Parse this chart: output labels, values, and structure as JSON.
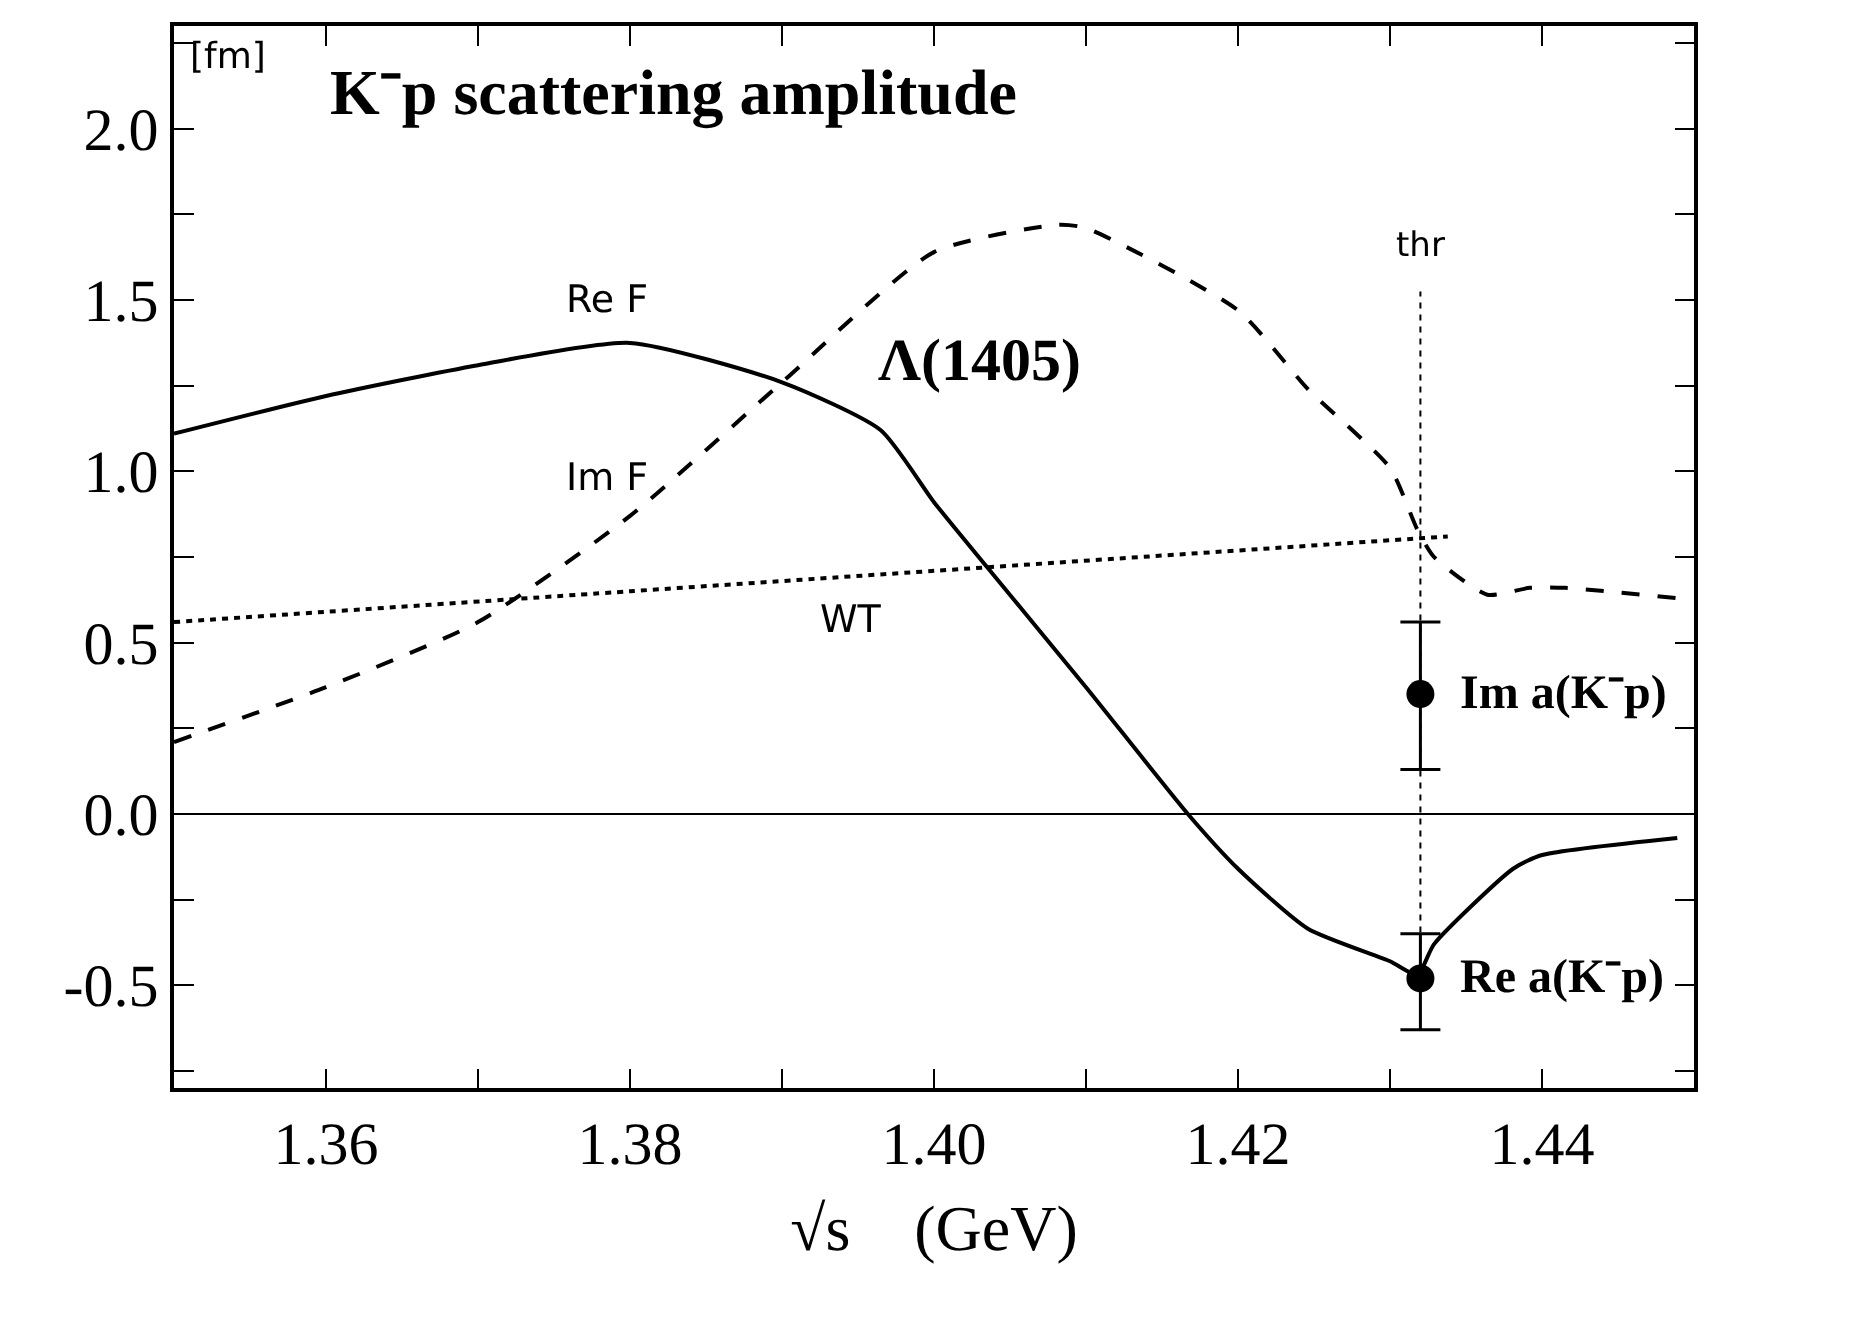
{
  "chart_data": {
    "type": "line",
    "title": "K⁻p scattering amplitude",
    "xlabel": "√s    (GeV)",
    "ylabel": "[fm]",
    "annotations": [
      "Λ(1405)",
      {
        "text": "Im a(K⁻p)",
        "x": 1.432,
        "y": 0.35
      },
      {
        "text": "Re a(K⁻p)",
        "x": 1.432,
        "y": -0.48
      }
    ],
    "xlim": [
      1.35,
      1.45
    ],
    "ylim": [
      -0.8,
      2.3
    ],
    "xticks": [
      {
        "value": 1.36,
        "label": "1.36"
      },
      {
        "value": 1.37,
        "label": null
      },
      {
        "value": 1.38,
        "label": "1.38"
      },
      {
        "value": 1.39,
        "label": null
      },
      {
        "value": 1.4,
        "label": "1.40"
      },
      {
        "value": 1.41,
        "label": null
      },
      {
        "value": 1.42,
        "label": "1.42"
      },
      {
        "value": 1.43,
        "label": null
      },
      {
        "value": 1.44,
        "label": "1.44"
      }
    ],
    "yticks": [
      {
        "value": -0.75,
        "label": null
      },
      {
        "value": -0.5,
        "label": "-0.5"
      },
      {
        "value": -0.25,
        "label": null
      },
      {
        "value": 0,
        "label": "0.0"
      },
      {
        "value": 0.25,
        "label": null
      },
      {
        "value": 0.5,
        "label": "0.5"
      },
      {
        "value": 0.75,
        "label": null
      },
      {
        "value": 1,
        "label": "1.0"
      },
      {
        "value": 1.25,
        "label": null
      },
      {
        "value": 1.5,
        "label": "1.5"
      },
      {
        "value": 1.75,
        "label": null
      },
      {
        "value": 2,
        "label": "2.0"
      },
      {
        "value": 2.25,
        "label": null
      }
    ],
    "grid": false,
    "ref_lines": [
      {
        "axis": "y",
        "value": 0,
        "color": "#000000",
        "line_style": "solid"
      },
      {
        "axis": "x",
        "value": 1.432,
        "label": "thr",
        "color": "#000000",
        "line_style": "dotted"
      }
    ],
    "series": [
      {
        "name": "Re F",
        "color": "#000000",
        "line_style": "solid",
        "x": [
          1.35,
          1.36,
          1.37,
          1.38,
          1.39,
          1.3965,
          1.4,
          1.4035,
          1.41,
          1.4167,
          1.42,
          1.4246,
          1.43,
          1.4318,
          1.4329,
          1.4381,
          1.44,
          1.4489
        ],
        "values": [
          1.11,
          1.22,
          1.31,
          1.375,
          1.26,
          1.12,
          0.91,
          0.72,
          0.37,
          0,
          -0.16,
          -0.335,
          -0.43,
          -0.47,
          -0.38,
          -0.16,
          -0.12,
          -0.07
        ]
      },
      {
        "name": "Im F",
        "color": "#000000",
        "line_style": "dashed",
        "x": [
          1.35,
          1.36,
          1.37,
          1.38,
          1.39,
          1.4,
          1.4082,
          1.41,
          1.42,
          1.4246,
          1.43,
          1.4318,
          1.4329,
          1.4364,
          1.4392,
          1.4415,
          1.4489
        ],
        "values": [
          0.21,
          0.37,
          0.56,
          0.87,
          1.26,
          1.64,
          1.72,
          1.71,
          1.47,
          1.24,
          1.01,
          0.83,
          0.75,
          0.64,
          0.66,
          0.66,
          0.63
        ]
      },
      {
        "name": "WT",
        "color": "#000000",
        "line_style": "dotted",
        "x": [
          1.35,
          1.38,
          1.4338
        ],
        "values": [
          0.56,
          0.65,
          0.81
        ]
      },
      {
        "type": "scatter",
        "marker": "circle",
        "color": "#000000",
        "x": [
          1.432
        ],
        "values": [
          0.35
        ],
        "errors": [
          [
            0.13,
            0.56
          ]
        ]
      },
      {
        "type": "scatter",
        "marker": "circle",
        "color": "#000000",
        "x": [
          1.432
        ],
        "values": [
          -0.48
        ],
        "errors": [
          [
            -0.63,
            -0.35
          ]
        ]
      }
    ]
  }
}
